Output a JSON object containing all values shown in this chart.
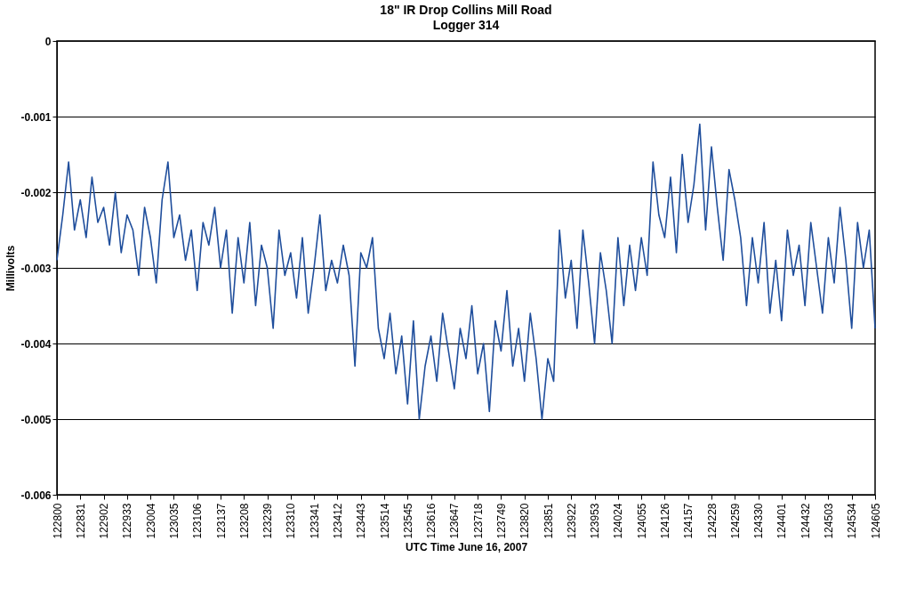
{
  "chart_data": {
    "type": "line",
    "title": "18\" IR Drop Collins Mill Road",
    "subtitle": "Logger 314",
    "xlabel": "UTC Time June 16, 2007",
    "ylabel": "Millivolts",
    "categories": [
      "122800",
      null,
      null,
      null,
      "122831",
      null,
      null,
      null,
      "122902",
      null,
      null,
      null,
      "122933",
      null,
      null,
      null,
      "123004",
      null,
      null,
      null,
      "123035",
      null,
      null,
      null,
      "123106",
      null,
      null,
      null,
      "123137",
      null,
      null,
      null,
      "123208",
      null,
      null,
      null,
      "123239",
      null,
      null,
      null,
      "123310",
      null,
      null,
      null,
      "123341",
      null,
      null,
      null,
      "123412",
      null,
      null,
      null,
      "123443",
      null,
      null,
      null,
      "123514",
      null,
      null,
      null,
      "123545",
      null,
      null,
      null,
      "123616",
      null,
      null,
      null,
      "123647",
      null,
      null,
      null,
      "123718",
      null,
      null,
      null,
      "123749",
      null,
      null,
      null,
      "123820",
      null,
      null,
      null,
      "123851",
      null,
      null,
      null,
      "123922",
      null,
      null,
      null,
      "123953",
      null,
      null,
      null,
      "124024",
      null,
      null,
      null,
      "124055",
      null,
      null,
      null,
      "124126",
      null,
      null,
      null,
      "124157",
      null,
      null,
      null,
      "124228",
      null,
      null,
      null,
      "124259",
      null,
      null,
      null,
      "124330",
      null,
      null,
      null,
      "124401",
      null,
      null,
      null,
      "124432",
      null,
      null,
      null,
      "124503",
      null,
      null,
      null,
      "124534",
      null,
      null,
      null,
      "124605"
    ],
    "series": [
      {
        "color": "#1f4e9c",
        "values": [
          -0.0029,
          -0.0023,
          -0.0016,
          -0.0025,
          -0.0021,
          -0.0026,
          -0.0018,
          -0.0024,
          -0.0022,
          -0.0027,
          -0.002,
          -0.0028,
          -0.0023,
          -0.0025,
          -0.0031,
          -0.0022,
          -0.0026,
          -0.0032,
          -0.0021,
          -0.0016,
          -0.0026,
          -0.0023,
          -0.0029,
          -0.0025,
          -0.0033,
          -0.0024,
          -0.0027,
          -0.0022,
          -0.003,
          -0.0025,
          -0.0036,
          -0.0026,
          -0.0032,
          -0.0024,
          -0.0035,
          -0.0027,
          -0.003,
          -0.0038,
          -0.0025,
          -0.0031,
          -0.0028,
          -0.0034,
          -0.0026,
          -0.0036,
          -0.003,
          -0.0023,
          -0.0033,
          -0.0029,
          -0.0032,
          -0.0027,
          -0.0031,
          -0.0043,
          -0.0028,
          -0.003,
          -0.0026,
          -0.0038,
          -0.0042,
          -0.0036,
          -0.0044,
          -0.0039,
          -0.0048,
          -0.0037,
          -0.005,
          -0.0043,
          -0.0039,
          -0.0045,
          -0.0036,
          -0.0041,
          -0.0046,
          -0.0038,
          -0.0042,
          -0.0035,
          -0.0044,
          -0.004,
          -0.0049,
          -0.0037,
          -0.0041,
          -0.0033,
          -0.0043,
          -0.0038,
          -0.0045,
          -0.0036,
          -0.0042,
          -0.005,
          -0.0042,
          -0.0045,
          -0.0025,
          -0.0034,
          -0.0029,
          -0.0038,
          -0.0025,
          -0.0032,
          -0.004,
          -0.0028,
          -0.0033,
          -0.004,
          -0.0026,
          -0.0035,
          -0.0027,
          -0.0033,
          -0.0026,
          -0.0031,
          -0.0016,
          -0.0023,
          -0.0026,
          -0.0018,
          -0.0028,
          -0.0015,
          -0.0024,
          -0.0019,
          -0.0011,
          -0.0025,
          -0.0014,
          -0.0022,
          -0.0029,
          -0.0017,
          -0.0021,
          -0.0026,
          -0.0035,
          -0.0026,
          -0.0032,
          -0.0024,
          -0.0036,
          -0.0029,
          -0.0037,
          -0.0025,
          -0.0031,
          -0.0027,
          -0.0035,
          -0.0024,
          -0.003,
          -0.0036,
          -0.0026,
          -0.0032,
          -0.0022,
          -0.0029,
          -0.0038,
          -0.0024,
          -0.003,
          -0.0025,
          -0.0038
        ]
      }
    ],
    "ylim": [
      -0.006,
      0
    ],
    "yticks": [
      -0.006,
      -0.005,
      -0.004,
      -0.003,
      -0.002,
      -0.001,
      0
    ],
    "grid": "y"
  }
}
